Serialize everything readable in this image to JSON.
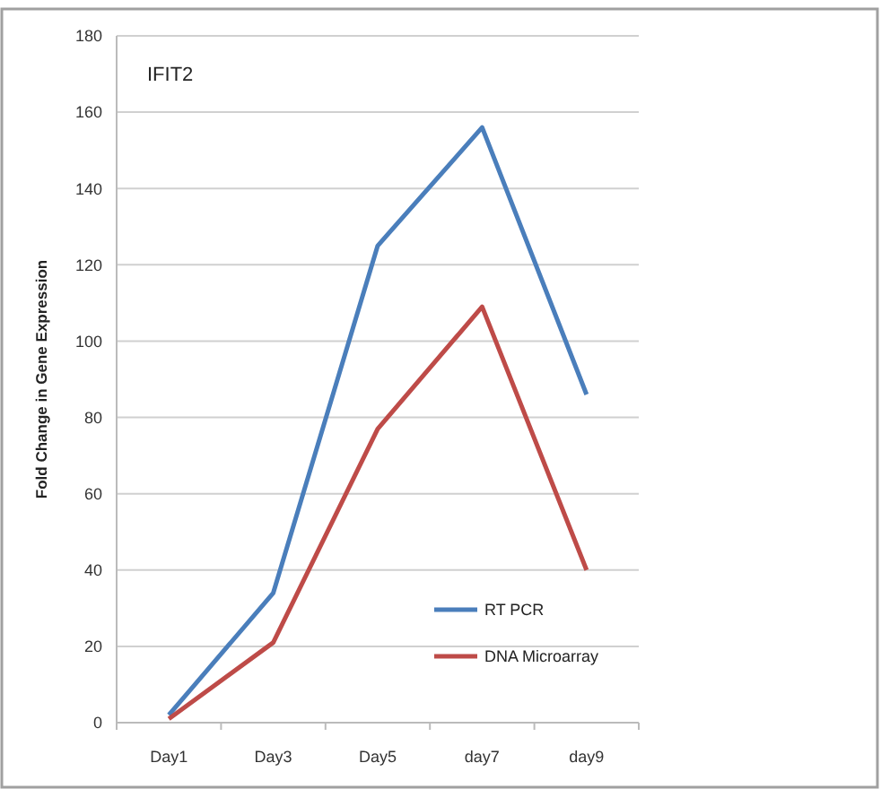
{
  "chart_data": {
    "type": "line",
    "title": "IFIT2",
    "ylabel": "Fold Change in Gene Expression",
    "categories": [
      "Day1",
      "Day3",
      "Day5",
      "day7",
      "day9"
    ],
    "series": [
      {
        "name": "RT PCR",
        "color": "#4a7ebb",
        "values": [
          2,
          34,
          125,
          156,
          86
        ]
      },
      {
        "name": "DNA Microarray",
        "color": "#be4b48",
        "values": [
          1,
          21,
          77,
          109,
          40
        ]
      }
    ],
    "ylim": [
      0,
      180
    ],
    "yticks": [
      0,
      20,
      40,
      60,
      80,
      100,
      120,
      140,
      160,
      180
    ],
    "grid": "y",
    "legend": "bottom right",
    "marker": "none",
    "line_style": "solid"
  }
}
